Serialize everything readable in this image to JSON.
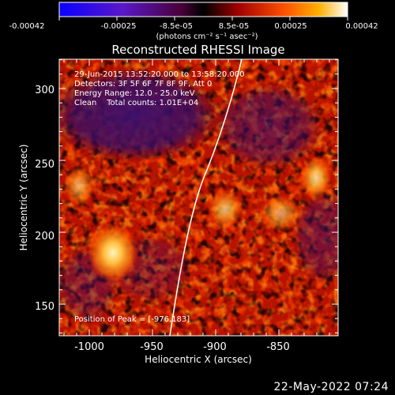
{
  "colorbar": {
    "tick_labels": [
      "-0.00042",
      "-0.00025",
      "-8.5e-05",
      "8.5e-05",
      "0.00025",
      "0.00042"
    ],
    "units": "(photons cm⁻² s⁻¹ asec⁻²)"
  },
  "plot": {
    "title": "Reconstructed RHESSI Image",
    "info_lines": [
      "29-Jun-2015 13:52:20.000 to 13:58:20.000",
      "Detectors: 3F 5F 6F 7F 8F 9F, Att 0",
      "Energy Range: 12.0 - 25.0 keV",
      "Clean    Total counts: 1.01E+04"
    ],
    "peak_label": "Position of Peak = [-976,183]",
    "xlabel": "Heliocentric X (arcsec)",
    "ylabel": "Heliocentric Y (arcsec)",
    "x_ticks": [
      "-1000",
      "-950",
      "-900",
      "-850"
    ],
    "y_ticks": [
      "150",
      "200",
      "250",
      "300"
    ]
  },
  "footer": {
    "timestamp": "22-May-2022 07:24"
  }
}
